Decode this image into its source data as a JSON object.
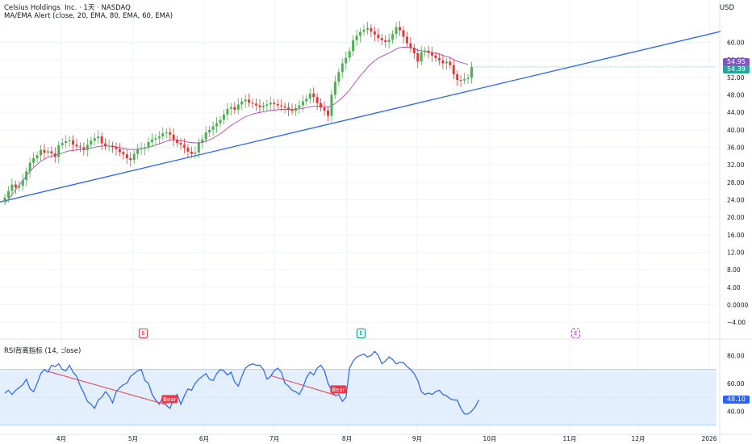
{
  "header": {
    "title": "Celsius Holdings, Inc. · 1天 · NASDAQ",
    "indicator": "MA/EMA Alert (close, 20, EMA, 80, EMA, 60, EMA)",
    "currency": "USD",
    "rsi_title": "RSI背离指标 (14, close)"
  },
  "colors": {
    "up": "#26a69a",
    "up_body": "#4caf50",
    "down": "#e53935",
    "ema": "#9c27b0",
    "trend": "#2962ff",
    "rsi": "#2962ff",
    "rsi_band": "#e3effd",
    "bear": "#f23645",
    "grid": "#f0f3fa"
  },
  "chart_data": [
    {
      "type": "candlestick",
      "x_ticks": [
        "4月",
        "5月",
        "6月",
        "7月",
        "8月",
        "9月",
        "10月",
        "11月",
        "12月",
        "2026"
      ],
      "y_ticks": [
        "60.00",
        "56.00",
        "52.00",
        "48.00",
        "44.00",
        "40.00",
        "36.00",
        "32.00",
        "28.00",
        "24.00",
        "20.00",
        "16.00",
        "12.00",
        "8.00",
        "4.00",
        "0.0000",
        "−4.00"
      ],
      "y_range": [
        -6,
        66
      ],
      "last_price": "54.39",
      "ema_value": "54.95",
      "series_close": [
        24.5,
        26,
        27.5,
        26.8,
        27.2,
        28.5,
        30.5,
        32.5,
        33.5,
        34.2,
        35.4,
        34.8,
        35.1,
        34.6,
        33.8,
        36.5,
        37,
        37.4,
        37.6,
        36.6,
        36.2,
        36,
        35.4,
        36.6,
        37.5,
        38.1,
        38.5,
        36.9,
        36.3,
        36.4,
        36,
        35.6,
        34.9,
        34.4,
        33.5,
        33.1,
        34.5,
        35.6,
        35.7,
        36,
        37.2,
        37.8,
        38.1,
        38.5,
        39.2,
        39.4,
        38.9,
        37.8,
        37,
        36.6,
        35.9,
        35,
        34.5,
        34.8,
        37.2,
        37.8,
        39.4,
        40,
        40.8,
        41.5,
        42.3,
        43.5,
        44.8,
        45.2,
        44.6,
        45.8,
        46.5,
        46.9,
        46.2,
        46,
        45.6,
        45.2,
        45.5,
        45.8,
        46.2,
        45.9,
        45.6,
        45.4,
        45.1,
        44.6,
        44.3,
        45,
        45.6,
        46.5,
        47.1,
        48.3,
        47.5,
        46.1,
        45.1,
        44.4,
        43.2,
        48,
        51,
        53.2,
        55.2,
        56.5,
        58,
        60.5,
        61.5,
        62.4,
        62.9,
        63.3,
        62.5,
        61.8,
        61,
        60.5,
        60.1,
        60.6,
        61.9,
        63.5,
        62.8,
        61.3,
        59.8,
        58.8,
        57.5,
        55.6,
        57.8,
        58.1,
        57.6,
        57,
        56.4,
        55.9,
        55.2,
        55.6,
        54.8,
        52.7,
        51.4,
        51.3,
        51.6,
        51.9,
        54.4
      ],
      "series_ema": [
        23.2,
        24.1,
        25.2,
        26.3,
        27.3,
        28.4,
        29.5,
        30.5,
        31.4,
        32.1,
        32.8,
        33.3,
        33.7,
        34,
        34.2,
        34.4,
        34.7,
        35,
        35.2,
        35.3,
        35.4,
        35.5,
        35.5,
        35.6,
        35.8,
        36,
        36.2,
        36.3,
        36.3,
        36.3,
        36.2,
        36.1,
        35.9,
        35.8,
        35.6,
        35.5,
        35.5,
        35.6,
        35.7,
        35.8,
        36,
        36.2,
        36.5,
        36.8,
        37.1,
        37.4,
        37.6,
        37.7,
        37.6,
        37.5,
        37.4,
        37.2,
        37.1,
        37,
        37,
        37.1,
        37.4,
        37.7,
        38.1,
        38.6,
        39.1,
        39.7,
        40.4,
        41,
        41.5,
        42,
        42.5,
        43,
        43.3,
        43.6,
        43.8,
        44,
        44.1,
        44.3,
        44.4,
        44.5,
        44.6,
        44.7,
        44.7,
        44.7,
        44.7,
        44.7,
        44.8,
        44.9,
        45.1,
        45.3,
        45.4,
        45.4,
        45.4,
        45.3,
        45.2,
        45.5,
        46,
        46.7,
        47.4,
        48.2,
        49.1,
        50.2,
        51.3,
        52.4,
        53.3,
        54.3,
        55.1,
        55.8,
        56.4,
        56.8,
        57.2,
        57.6,
        58,
        58.5,
        58.8,
        58.9,
        58.9,
        58.8,
        58.6,
        58.2,
        58.1,
        58,
        57.9,
        57.7,
        57.5,
        57.3,
        57,
        56.8,
        56.5,
        56.1,
        55.7,
        55.4,
        55.2,
        54.95
      ],
      "trendline": [
        {
          "x": "2025-03-03",
          "y": 23.5
        },
        {
          "x": "2026-01-20",
          "y": 62.5
        }
      ]
    },
    {
      "type": "line",
      "name": "RSI",
      "y_ticks": [
        "80.00",
        "60.00",
        "40.00"
      ],
      "y_range": [
        28,
        86
      ],
      "overbought": 70,
      "oversold": 30,
      "last_value": "48.10",
      "values": [
        53,
        55,
        52,
        55,
        57,
        59,
        63,
        56,
        54,
        60,
        67,
        70,
        68,
        73,
        72,
        74,
        70,
        69,
        73,
        68,
        65,
        58,
        53,
        47,
        45,
        42,
        48,
        50,
        54,
        51,
        46,
        54,
        57,
        59,
        60,
        65,
        67,
        69,
        70,
        62,
        60,
        52,
        48,
        45,
        50,
        44,
        42,
        49,
        52,
        45,
        51,
        56,
        55,
        60,
        63,
        65,
        67,
        63,
        62,
        67,
        70,
        69,
        66,
        68,
        61,
        58,
        65,
        71,
        73,
        74,
        73,
        73,
        70,
        63,
        65,
        69,
        71,
        68,
        60,
        58,
        55,
        54,
        52,
        57,
        64,
        68,
        66,
        71,
        73,
        69,
        60,
        55,
        51,
        52,
        47,
        50,
        71,
        76,
        79,
        80,
        81,
        79,
        80,
        83,
        80,
        74,
        76,
        79,
        77,
        74,
        75,
        75,
        72,
        70,
        67,
        62,
        54,
        52,
        53,
        52,
        54,
        55,
        52,
        51,
        49,
        48,
        48,
        42,
        38,
        38,
        40,
        43,
        48.1
      ],
      "annotations": [
        "Bear",
        "Bear"
      ],
      "events": [
        "E",
        "E",
        "E"
      ]
    }
  ]
}
